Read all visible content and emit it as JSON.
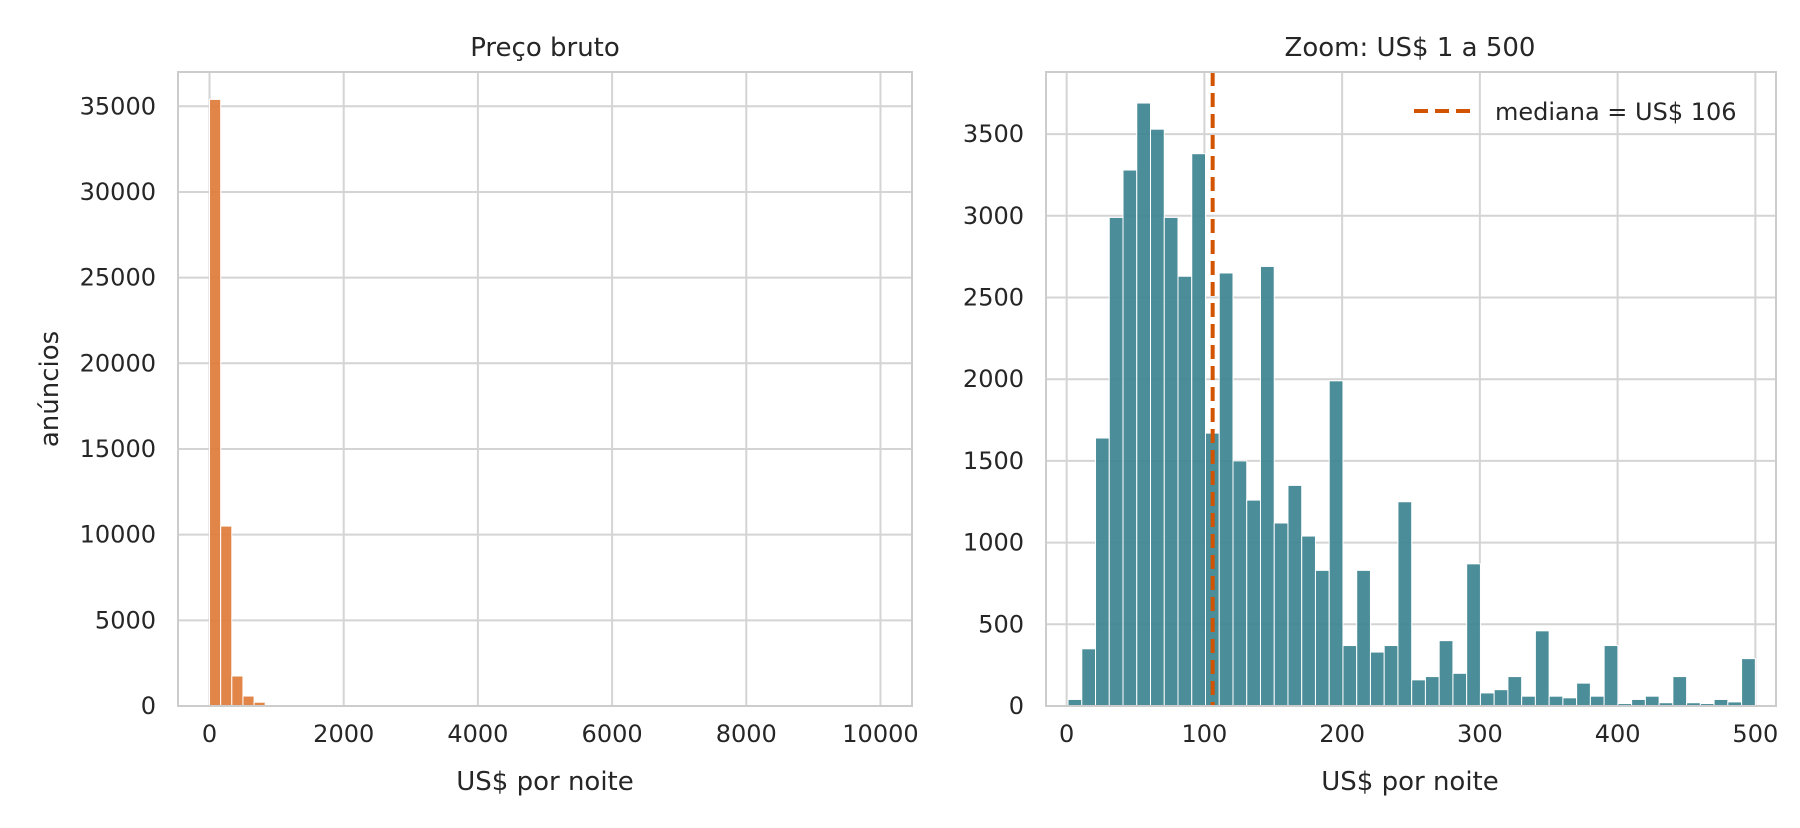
{
  "chart_data": [
    {
      "type": "bar",
      "title": "Preço bruto",
      "xlabel": "US$ por noite",
      "ylabel": "anúncios",
      "xlim": [
        -470,
        10470
      ],
      "ylim": [
        0,
        37000
      ],
      "xticks": [
        0,
        2000,
        4000,
        6000,
        8000,
        10000
      ],
      "yticks": [
        0,
        5000,
        10000,
        15000,
        20000,
        25000,
        30000,
        35000
      ],
      "grid": true,
      "color": "#e07b39",
      "bin_width": 166,
      "bin_starts": [
        0,
        166,
        332,
        498,
        664,
        830,
        996,
        1162,
        1328,
        1494
      ],
      "values": [
        35400,
        10500,
        1750,
        580,
        220,
        80,
        40,
        20,
        10,
        5
      ]
    },
    {
      "type": "bar",
      "title": "Zoom: US$ 1 a 500",
      "xlabel": "US$ por noite",
      "ylabel": "",
      "xlim": [
        -15,
        515
      ],
      "ylim": [
        0,
        3880
      ],
      "xticks": [
        0,
        100,
        200,
        300,
        400,
        500
      ],
      "yticks": [
        0,
        500,
        1000,
        1500,
        2000,
        2500,
        3000,
        3500
      ],
      "grid": true,
      "color": "#3c8390",
      "bin_width": 9.98,
      "bin_start": 1,
      "values": [
        40,
        350,
        1640,
        2990,
        3280,
        3690,
        3530,
        2990,
        2630,
        3380,
        1670,
        2650,
        1500,
        1260,
        2690,
        1120,
        1350,
        1040,
        830,
        1990,
        370,
        830,
        330,
        370,
        1250,
        160,
        180,
        400,
        200,
        870,
        80,
        100,
        180,
        60,
        460,
        60,
        50,
        140,
        60,
        370,
        15,
        40,
        60,
        20,
        180,
        20,
        15,
        40,
        25,
        290
      ],
      "median_line": {
        "value": 106,
        "label": "mediana = US$ 106",
        "color": "#d35400",
        "legend_position": "top-right"
      }
    }
  ]
}
